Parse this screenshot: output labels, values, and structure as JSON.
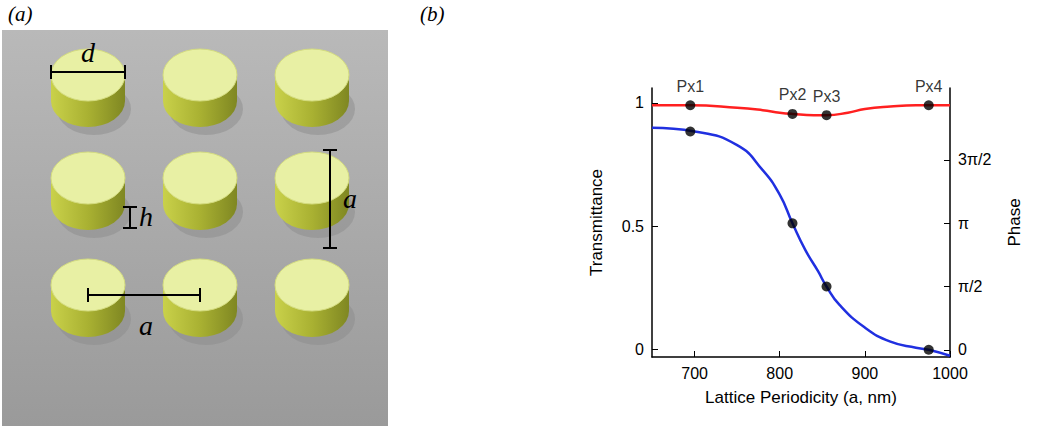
{
  "diagram": {
    "label": "(a)",
    "diameter": "d",
    "height": "h",
    "period_horizontal": "a",
    "period_vertical": "a"
  },
  "chart_data": {
    "label": "(b)",
    "type": "line",
    "xlabel": "Lattice Periodicity (a, nm)",
    "ylabel": "Transmittance",
    "y2label": "Phase",
    "xlim": [
      650,
      1000
    ],
    "xticks": [
      700,
      800,
      900,
      1000
    ],
    "ylim": [
      -0.03,
      1.06
    ],
    "yticks": [
      0,
      0.5,
      1
    ],
    "y2lim": [
      -0.18,
      6.5
    ],
    "y2ticks": [
      0,
      {
        "value": 1.5708,
        "label": "π/2"
      },
      {
        "value": 3.1416,
        "label": "π"
      },
      {
        "value": 4.7124,
        "label": "3π/2"
      }
    ],
    "grid": false,
    "series": [
      {
        "name": "Transmittance",
        "color": "#ff2020",
        "x": [
          650,
          695,
          750,
          780,
          800,
          815,
          840,
          855,
          880,
          900,
          930,
          960,
          975,
          1000
        ],
        "values": [
          0.99,
          0.99,
          0.98,
          0.97,
          0.96,
          0.955,
          0.95,
          0.95,
          0.96,
          0.975,
          0.985,
          0.99,
          0.99,
          0.99
        ]
      },
      {
        "name": "Phase",
        "color": "#2030e0",
        "axis": "y2",
        "x": [
          650,
          700,
          750,
          780,
          800,
          815,
          830,
          845,
          855,
          870,
          900,
          930,
          960,
          975,
          1000
        ],
        "values": [
          5.51,
          5.42,
          5.08,
          4.46,
          3.85,
          3.14,
          2.48,
          1.95,
          1.57,
          1.12,
          0.55,
          0.2,
          0.05,
          0.0,
          -0.15
        ]
      }
    ],
    "points": {
      "color": "#000000",
      "marker": "circle",
      "labels": [
        "Px1",
        "Px2",
        "Px3",
        "Px4"
      ],
      "x": [
        695,
        815,
        855,
        975
      ],
      "transmittance": [
        0.99,
        0.955,
        0.95,
        0.99
      ],
      "phase": [
        5.42,
        3.14,
        1.57,
        0.0
      ]
    }
  }
}
